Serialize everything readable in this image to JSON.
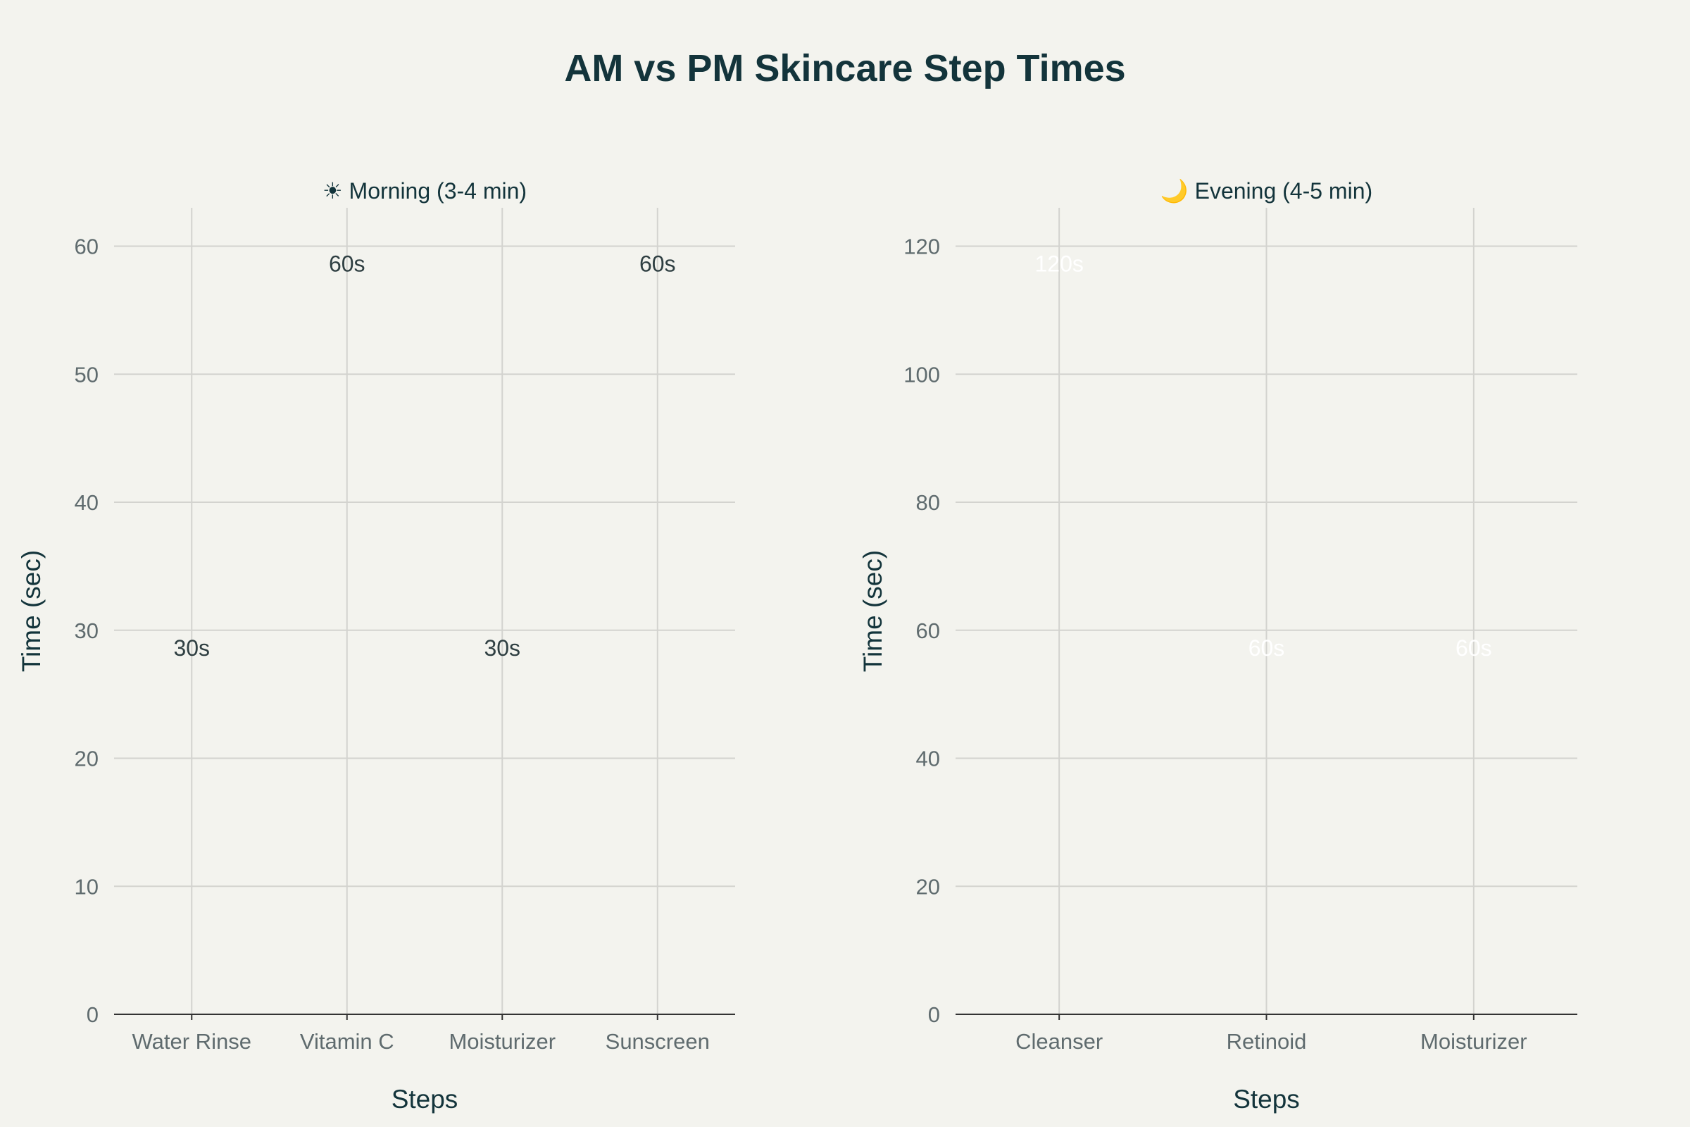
{
  "chart_data": {
    "title": "AM vs PM Skincare Step Times",
    "panels": [
      {
        "type": "bar",
        "subtitle": "☀ Morning (3-4 min)",
        "xlabel": "Steps",
        "ylabel": "Time (sec)",
        "categories": [
          "Water Rinse",
          "Vitamin C",
          "Moisturizer",
          "Sunscreen"
        ],
        "values": [
          30,
          60,
          30,
          60
        ],
        "value_labels": [
          "30s",
          "60s",
          "30s",
          "60s"
        ],
        "ylim": [
          0,
          63
        ],
        "yticks": [
          0,
          10,
          20,
          30,
          40,
          50,
          60
        ],
        "color": "#21b8cc",
        "label_color": "#2f3f42",
        "grid": true
      },
      {
        "type": "bar",
        "subtitle": "🌙 Evening (4-5 min)",
        "xlabel": "Steps",
        "ylabel": "Time (sec)",
        "categories": [
          "Cleanser",
          "Retinoid",
          "Moisturizer"
        ],
        "values": [
          120,
          60,
          60
        ],
        "value_labels": [
          "120s",
          "60s",
          "60s"
        ],
        "ylim": [
          0,
          126
        ],
        "yticks": [
          0,
          20,
          40,
          60,
          80,
          100,
          120
        ],
        "color": "#db4545",
        "label_color": "#ffffff",
        "grid": true
      }
    ]
  }
}
